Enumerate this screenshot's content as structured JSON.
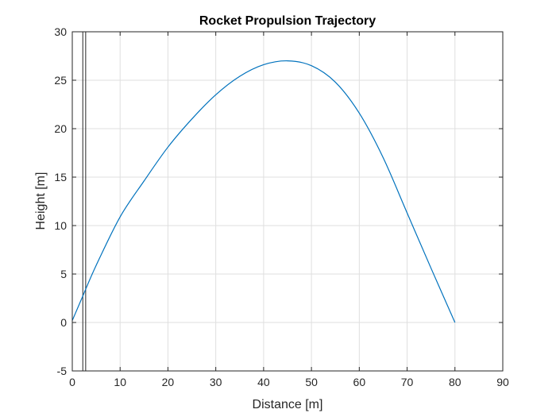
{
  "chart_data": {
    "type": "line",
    "title": "Rocket Propulsion Trajectory",
    "xlabel": "Distance [m]",
    "ylabel": "Height [m]",
    "xlim": [
      0,
      90
    ],
    "ylim": [
      -5,
      30
    ],
    "xticks": [
      0,
      10,
      20,
      30,
      40,
      50,
      60,
      70,
      80,
      90
    ],
    "yticks": [
      -5,
      0,
      5,
      10,
      15,
      20,
      25,
      30
    ],
    "grid": true,
    "colors": {
      "series": "#0072BD",
      "vertical_lines": "#262626",
      "grid": "#dfdfdf",
      "axes": "#262626"
    },
    "series": [
      {
        "x": [
          0,
          2,
          5,
          10,
          15,
          20,
          25,
          30,
          35,
          40,
          45,
          50,
          55,
          60,
          65,
          70,
          75,
          80
        ],
        "y": [
          0.2,
          2.5,
          5.9,
          10.9,
          14.6,
          18.1,
          21.0,
          23.5,
          25.4,
          26.6,
          27.0,
          26.5,
          24.8,
          21.6,
          17.0,
          11.3,
          5.6,
          0.0
        ]
      }
    ],
    "vertical_lines": [
      2.2,
      2.8
    ]
  }
}
